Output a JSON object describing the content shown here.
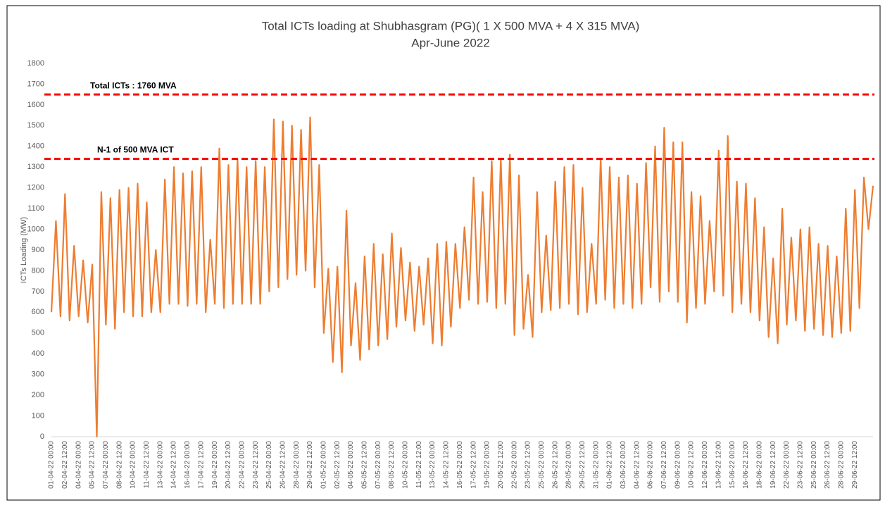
{
  "chart_data": {
    "type": "line",
    "title": "Total  ICTs loading  at Shubhasgram (PG)( 1 X 500 MVA + 4 X 315 MVA)",
    "subtitle": "Apr-June 2022",
    "y_label": "ICTs Loading (MW)",
    "ylim": [
      0,
      1800
    ],
    "yticks": [
      0,
      100,
      200,
      300,
      400,
      500,
      600,
      700,
      800,
      900,
      1000,
      1100,
      1200,
      1300,
      1400,
      1500,
      1600,
      1700,
      1800
    ],
    "grid": false,
    "color": "#ed7d31",
    "reference_lines": [
      {
        "value": 1650,
        "label": "Total ICTs : 1760  MVA",
        "color": "#ff0000"
      },
      {
        "value": 1340,
        "label": "N-1 of 500 MVA ICT",
        "color": "#ff0000"
      }
    ],
    "categories": [
      "01-04-22 00:00",
      null,
      null,
      "02-04-22 12:00",
      null,
      null,
      "04-04-22 00:00",
      null,
      null,
      "05-04-22 12:00",
      null,
      null,
      "07-04-22 00:00",
      null,
      null,
      "08-04-22 12:00",
      null,
      null,
      "10-04-22 00:00",
      null,
      null,
      "11-04-22 12:00",
      null,
      null,
      "13-04-22 00:00",
      null,
      null,
      "14-04-22 12:00",
      null,
      null,
      "16-04-22 00:00",
      null,
      null,
      "17-04-22 12:00",
      null,
      null,
      "19-04-22 00:00",
      null,
      null,
      "20-04-22 12:00",
      null,
      null,
      "22-04-22 00:00",
      null,
      null,
      "23-04-22 12:00",
      null,
      null,
      "25-04-22 00:00",
      null,
      null,
      "26-04-22 12:00",
      null,
      null,
      "28-04-22 00:00",
      null,
      null,
      "29-04-22 12:00",
      null,
      null,
      "01-05-22 00:00",
      null,
      null,
      "02-05-22 12:00",
      null,
      null,
      "04-05-22 00:00",
      null,
      null,
      "05-05-22 12:00",
      null,
      null,
      "07-05-22 00:00",
      null,
      null,
      "08-05-22 12:00",
      null,
      null,
      "10-05-22 00:00",
      null,
      null,
      "11-05-22 12:00",
      null,
      null,
      "13-05-22 00:00",
      null,
      null,
      "14-05-22 12:00",
      null,
      null,
      "16-05-22 00:00",
      null,
      null,
      "17-05-22 12:00",
      null,
      null,
      "19-05-22 00:00",
      null,
      null,
      "20-05-22 12:00",
      null,
      null,
      "22-05-22 00:00",
      null,
      null,
      "23-05-22 12:00",
      null,
      null,
      "25-05-22 00:00",
      null,
      null,
      "26-05-22 12:00",
      null,
      null,
      "28-05-22 00:00",
      null,
      null,
      "29-05-22 12:00",
      null,
      null,
      "31-05-22 00:00",
      null,
      null,
      "01-06-22 12:00",
      null,
      null,
      "03-06-22 00:00",
      null,
      null,
      "04-06-22 12:00",
      null,
      null,
      "06-06-22 00:00",
      null,
      null,
      "07-06-22 12:00",
      null,
      null,
      "09-06-22 00:00",
      null,
      null,
      "10-06-22 12:00",
      null,
      null,
      "12-06-22 00:00",
      null,
      null,
      "13-06-22 12:00",
      null,
      null,
      "15-06-22 00:00",
      null,
      null,
      "16-06-22 12:00",
      null,
      null,
      "18-06-22 00:00",
      null,
      null,
      "19-06-22 12:00",
      null,
      null,
      "22-06-22 00:00",
      null,
      null,
      "23-06-22 12:00",
      null,
      null,
      "25-06-22 00:00",
      null,
      null,
      "26-06-22 12:00",
      null,
      null,
      "28-06-22 00:00",
      null,
      null,
      "29-06-22 12:00",
      null,
      null,
      null,
      null
    ],
    "values": [
      600,
      1040,
      580,
      1170,
      560,
      920,
      580,
      850,
      550,
      830,
      0,
      1180,
      540,
      1150,
      520,
      1190,
      600,
      1200,
      580,
      1220,
      580,
      1130,
      600,
      900,
      600,
      1240,
      640,
      1300,
      640,
      1270,
      630,
      1280,
      640,
      1300,
      600,
      950,
      640,
      1390,
      620,
      1310,
      640,
      1340,
      640,
      1300,
      640,
      1330,
      640,
      1300,
      700,
      1530,
      720,
      1520,
      760,
      1500,
      780,
      1480,
      800,
      1540,
      720,
      1310,
      500,
      810,
      360,
      820,
      310,
      1090,
      440,
      740,
      370,
      870,
      420,
      930,
      440,
      880,
      470,
      980,
      530,
      910,
      560,
      840,
      510,
      820,
      540,
      860,
      450,
      930,
      440,
      940,
      530,
      930,
      620,
      1010,
      660,
      1250,
      640,
      1180,
      650,
      1330,
      620,
      1340,
      640,
      1360,
      490,
      1260,
      520,
      780,
      480,
      1180,
      600,
      970,
      610,
      1230,
      620,
      1300,
      640,
      1310,
      590,
      1200,
      600,
      930,
      640,
      1340,
      660,
      1300,
      620,
      1250,
      640,
      1260,
      620,
      1220,
      640,
      1320,
      720,
      1400,
      650,
      1490,
      700,
      1420,
      650,
      1420,
      550,
      1180,
      620,
      1160,
      640,
      1040,
      700,
      1380,
      680,
      1450,
      600,
      1230,
      640,
      1220,
      600,
      1150,
      560,
      1010,
      480,
      860,
      450,
      1100,
      540,
      960,
      560,
      1000,
      510,
      1010,
      520,
      930,
      490,
      920,
      480,
      870,
      500,
      1100,
      510,
      1190,
      620,
      1250,
      1000,
      1210
    ]
  }
}
